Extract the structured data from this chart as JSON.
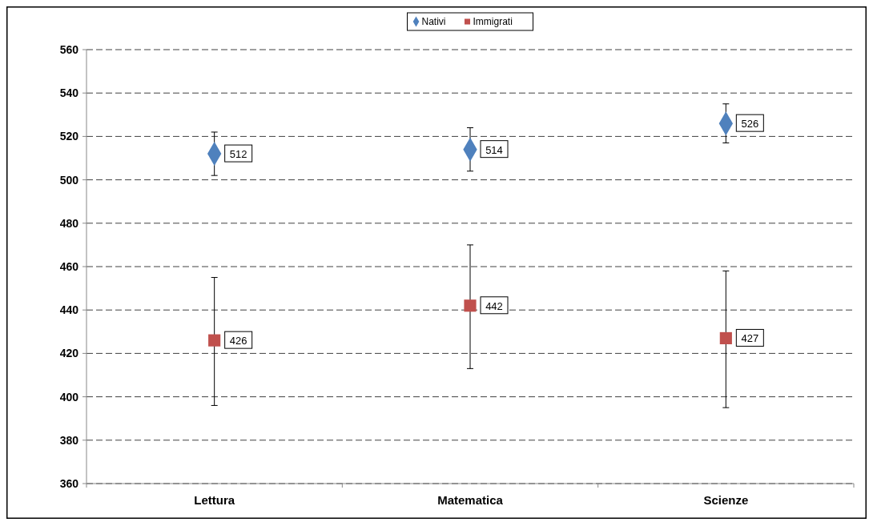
{
  "chart_data": {
    "type": "scatter",
    "categories": [
      "Lettura",
      "Matematica",
      "Scienze"
    ],
    "series": [
      {
        "name": "Nativi",
        "color": "#4f81bd",
        "marker": "diamond",
        "values": [
          512,
          514,
          526
        ],
        "errors": [
          [
            502,
            522
          ],
          [
            504,
            524
          ],
          [
            517,
            535
          ]
        ]
      },
      {
        "name": "Immigrati",
        "color": "#c0504d",
        "marker": "square",
        "values": [
          426,
          442,
          427
        ],
        "errors": [
          [
            396,
            455
          ],
          [
            413,
            470
          ],
          [
            395,
            458
          ]
        ]
      }
    ],
    "ylim": [
      360,
      560
    ],
    "yticks": [
      360,
      380,
      400,
      420,
      440,
      460,
      480,
      500,
      520,
      540,
      560
    ],
    "grid": "y",
    "legend": "top",
    "data_labels": true
  }
}
